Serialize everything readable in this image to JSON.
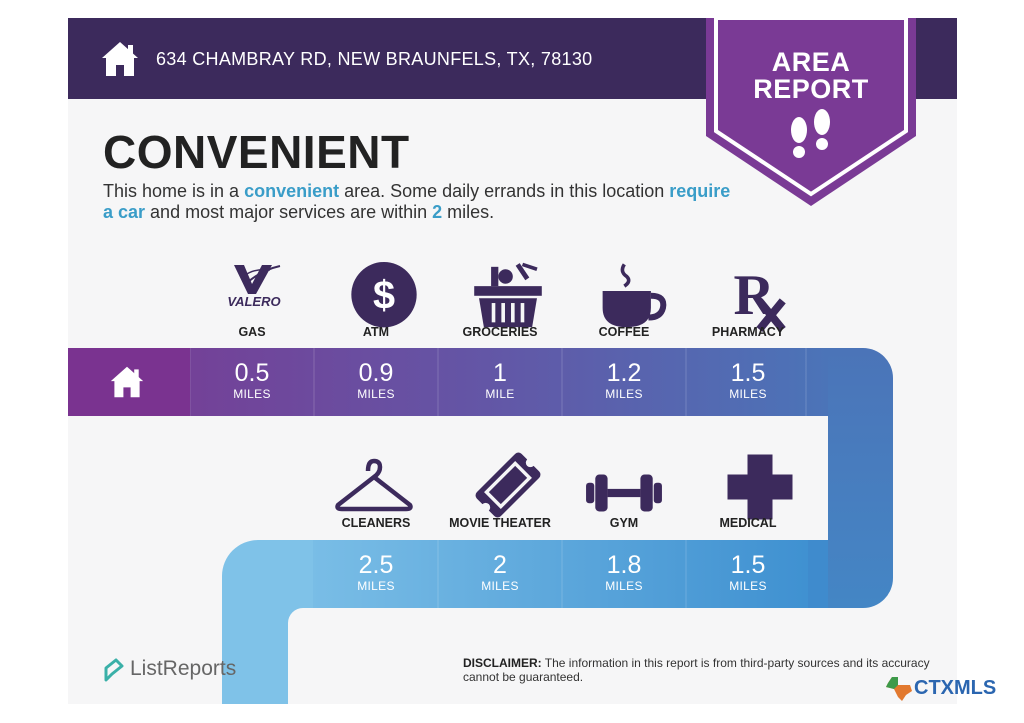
{
  "header": {
    "address": "634 CHAMBRAY RD, NEW BRAUNFELS, TX, 78130",
    "home_icon": "house-icon"
  },
  "badge": {
    "line1": "AREA",
    "line2": "REPORT",
    "icon": "footprints-icon"
  },
  "rating": {
    "title": "CONVENIENT",
    "desc_part1": "This home is in a ",
    "desc_hl1": "convenient",
    "desc_part2": " area. Some daily errands in this location ",
    "desc_hl2": "require a car",
    "desc_part3": " and most major services are within ",
    "desc_hl3": "2",
    "desc_part4": " miles."
  },
  "row1": [
    {
      "label": "GAS",
      "logo_text": "VALERO",
      "icon": "valero-logo-icon",
      "value": "0.5",
      "unit": "MILES"
    },
    {
      "label": "ATM",
      "icon": "dollar-icon",
      "value": "0.9",
      "unit": "MILES"
    },
    {
      "label": "GROCERIES",
      "icon": "grocery-basket-icon",
      "value": "1",
      "unit": "MILE"
    },
    {
      "label": "COFFEE",
      "icon": "coffee-cup-icon",
      "value": "1.2",
      "unit": "MILES"
    },
    {
      "label": "PHARMACY",
      "icon": "rx-icon",
      "value": "1.5",
      "unit": "MILES"
    }
  ],
  "row2": [
    {
      "label": "CLEANERS",
      "icon": "hanger-icon",
      "value": "2.5",
      "unit": "MILES"
    },
    {
      "label": "MOVIE THEATER",
      "icon": "ticket-icon",
      "value": "2",
      "unit": "MILES"
    },
    {
      "label": "GYM",
      "icon": "dumbbell-icon",
      "value": "1.8",
      "unit": "MILES"
    },
    {
      "label": "MEDICAL",
      "icon": "medical-cross-icon",
      "value": "1.5",
      "unit": "MILES"
    }
  ],
  "footer": {
    "brand": "ListReports",
    "disclaimer_label": "DISCLAIMER:",
    "disclaimer_text": " The information in this report is from third-party sources and its accuracy cannot be guaranteed.",
    "mls_ctx": "CTX",
    "mls_mls": "MLS"
  },
  "colors": {
    "dark_purple": "#3c2a5c",
    "badge_purple": "#7b3a96",
    "row1_start": "#7a3a92",
    "row2_blue": "#4aa0d6",
    "accent_blue": "#3a9dc8"
  }
}
